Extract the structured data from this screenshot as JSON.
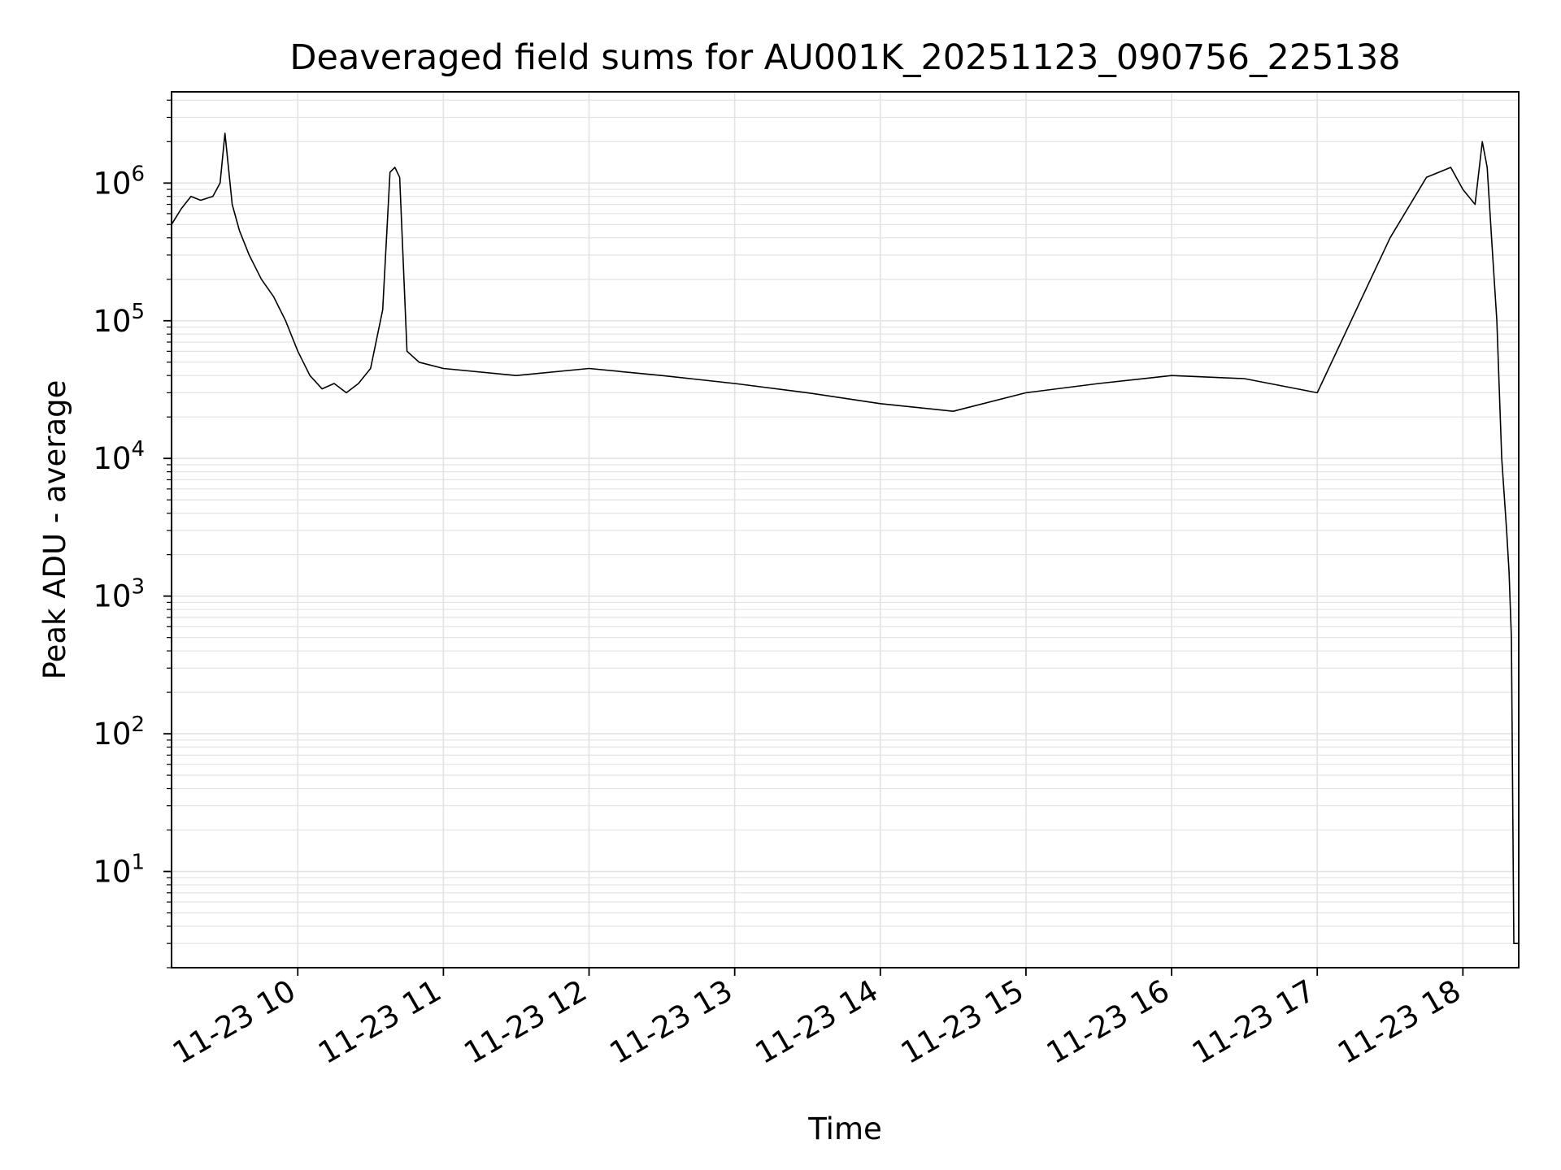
{
  "chart_data": {
    "type": "line",
    "title": "Deaveraged field sums for AU001K_20251123_090756_225138",
    "xlabel": "Time",
    "ylabel": "Peak ADU - average",
    "yscale": "log",
    "ylim": [
      2,
      4600000
    ],
    "xlim": [
      "2025-11-23 09:08",
      "2025-11-23 18:23"
    ],
    "grid": true,
    "line_color": "#000000",
    "x_ticks": [
      {
        "value": "2025-11-23 10:00",
        "label": "11-23 10"
      },
      {
        "value": "2025-11-23 11:00",
        "label": "11-23 11"
      },
      {
        "value": "2025-11-23 12:00",
        "label": "11-23 12"
      },
      {
        "value": "2025-11-23 13:00",
        "label": "11-23 13"
      },
      {
        "value": "2025-11-23 14:00",
        "label": "11-23 14"
      },
      {
        "value": "2025-11-23 15:00",
        "label": "11-23 15"
      },
      {
        "value": "2025-11-23 16:00",
        "label": "11-23 16"
      },
      {
        "value": "2025-11-23 17:00",
        "label": "11-23 17"
      },
      {
        "value": "2025-11-23 18:00",
        "label": "11-23 18"
      }
    ],
    "y_ticks": [
      {
        "value": 10,
        "base": "10",
        "exp": "1"
      },
      {
        "value": 100,
        "base": "10",
        "exp": "2"
      },
      {
        "value": 1000,
        "base": "10",
        "exp": "3"
      },
      {
        "value": 10000,
        "base": "10",
        "exp": "4"
      },
      {
        "value": 100000,
        "base": "10",
        "exp": "5"
      },
      {
        "value": 1000000,
        "base": "10",
        "exp": "6"
      }
    ],
    "series": [
      {
        "x": [
          "2025-11-23 09:08",
          "2025-11-23 09:12",
          "2025-11-23 09:16",
          "2025-11-23 09:20",
          "2025-11-23 09:25",
          "2025-11-23 09:28",
          "2025-11-23 09:30",
          "2025-11-23 09:33",
          "2025-11-23 09:36",
          "2025-11-23 09:40",
          "2025-11-23 09:45",
          "2025-11-23 09:50",
          "2025-11-23 09:55",
          "2025-11-23 10:00",
          "2025-11-23 10:05",
          "2025-11-23 10:10",
          "2025-11-23 10:15",
          "2025-11-23 10:20",
          "2025-11-23 10:25",
          "2025-11-23 10:30",
          "2025-11-23 10:35",
          "2025-11-23 10:38",
          "2025-11-23 10:40",
          "2025-11-23 10:42",
          "2025-11-23 10:45",
          "2025-11-23 10:50",
          "2025-11-23 11:00",
          "2025-11-23 11:30",
          "2025-11-23 12:00",
          "2025-11-23 12:30",
          "2025-11-23 13:00",
          "2025-11-23 13:30",
          "2025-11-23 14:00",
          "2025-11-23 14:30",
          "2025-11-23 15:00",
          "2025-11-23 15:30",
          "2025-11-23 16:00",
          "2025-11-23 16:30",
          "2025-11-23 17:00",
          "2025-11-23 17:30",
          "2025-11-23 17:45",
          "2025-11-23 17:55",
          "2025-11-23 18:00",
          "2025-11-23 18:05",
          "2025-11-23 18:08",
          "2025-11-23 18:10",
          "2025-11-23 18:12",
          "2025-11-23 18:14",
          "2025-11-23 18:16",
          "2025-11-23 18:18",
          "2025-11-23 18:19",
          "2025-11-23 18:20",
          "2025-11-23 18:21",
          "2025-11-23 18:22",
          "2025-11-23 18:23"
        ],
        "y": [
          500000,
          650000,
          800000,
          750000,
          800000,
          1000000,
          2300000,
          700000,
          450000,
          300000,
          200000,
          150000,
          100000,
          60000,
          40000,
          32000,
          35000,
          30000,
          35000,
          45000,
          120000,
          1200000,
          1300000,
          1100000,
          60000,
          50000,
          45000,
          40000,
          45000,
          40000,
          35000,
          30000,
          25000,
          22000,
          30000,
          35000,
          40000,
          38000,
          30000,
          400000,
          1100000,
          1300000,
          900000,
          700000,
          2000000,
          1300000,
          350000,
          100000,
          10000,
          3000,
          1500,
          500,
          3,
          3,
          3
        ]
      }
    ]
  }
}
